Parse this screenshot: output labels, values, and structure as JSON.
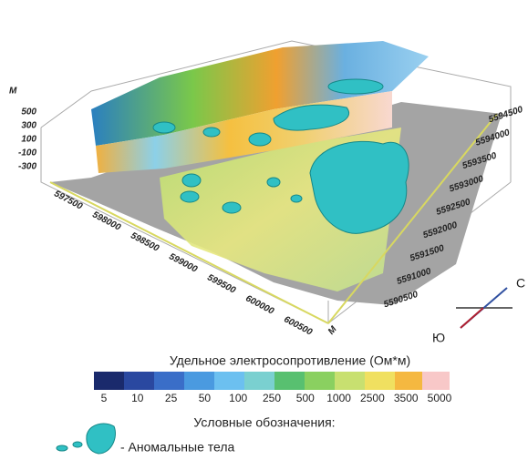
{
  "vertical_axis": {
    "unit": "М",
    "ticks": [
      "500",
      "300",
      "100",
      "-100",
      "-300"
    ]
  },
  "easting_axis": {
    "ticks": [
      "597500",
      "598000",
      "598500",
      "599000",
      "599500",
      "600000",
      "600500"
    ],
    "unit": "М"
  },
  "northing_axis": {
    "ticks": [
      "5594500",
      "5594000",
      "5593500",
      "5593000",
      "5592500",
      "5592000",
      "5591500",
      "5591000",
      "5590500"
    ],
    "unit": "М"
  },
  "compass": {
    "north": "С",
    "south": "Ю"
  },
  "colorbar": {
    "title": "Удельное электросопротивление (Ом*м)",
    "ticks": [
      "5",
      "10",
      "25",
      "50",
      "100",
      "250",
      "500",
      "1000",
      "2500",
      "3500",
      "5000"
    ]
  },
  "legend": {
    "title": "Условные обозначения:",
    "items": [
      {
        "label": "- Аномальные тела"
      }
    ]
  }
}
